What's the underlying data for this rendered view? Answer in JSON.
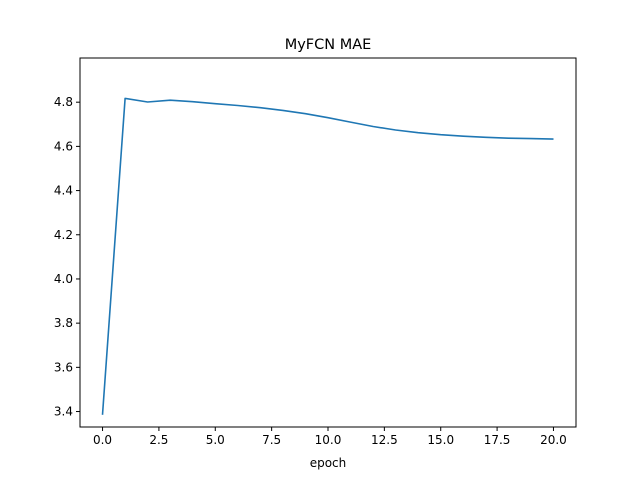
{
  "chart_data": {
    "type": "line",
    "title": "MyFCN MAE",
    "xlabel": "epoch",
    "ylabel": "",
    "xlim": [
      -1.0,
      21.0
    ],
    "ylim": [
      3.33,
      5.0
    ],
    "xticks": [
      0.0,
      2.5,
      5.0,
      7.5,
      10.0,
      12.5,
      15.0,
      17.5,
      20.0
    ],
    "xtick_labels": [
      "0.0",
      "2.5",
      "5.0",
      "7.5",
      "10.0",
      "12.5",
      "15.0",
      "17.5",
      "20.0"
    ],
    "yticks": [
      3.4,
      3.6,
      3.8,
      4.0,
      4.2,
      4.4,
      4.6,
      4.8
    ],
    "ytick_labels": [
      "3.4",
      "3.6",
      "3.8",
      "4.0",
      "4.2",
      "4.4",
      "4.6",
      "4.8"
    ],
    "grid": false,
    "series": [
      {
        "color": "#1f77b4",
        "x": [
          0,
          1,
          2,
          3,
          4,
          5,
          6,
          7,
          8,
          9,
          10,
          11,
          12,
          13,
          14,
          15,
          16,
          17,
          18,
          19,
          20
        ],
        "y": [
          3.385,
          4.817,
          4.801,
          4.809,
          4.802,
          4.793,
          4.785,
          4.775,
          4.763,
          4.748,
          4.73,
          4.71,
          4.69,
          4.674,
          4.662,
          4.653,
          4.646,
          4.641,
          4.637,
          4.635,
          4.633
        ]
      }
    ]
  }
}
